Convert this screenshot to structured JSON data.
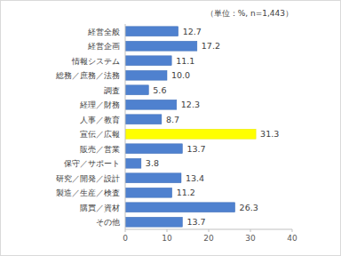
{
  "chart_data": {
    "type": "bar",
    "orientation": "horizontal",
    "annotation": "（単位：%, n=1,443）",
    "categories": [
      "経営全般",
      "経営企画",
      "情報システム",
      "総務／庶務／法務",
      "調査",
      "経理／財務",
      "人事／教育",
      "宣伝／広報",
      "販売／営業",
      "保守／サポート",
      "研究／開発／設計",
      "製造／生産／検査",
      "購買／資材",
      "その他"
    ],
    "values": [
      12.7,
      17.2,
      11.1,
      10.0,
      5.6,
      12.3,
      8.7,
      31.3,
      13.7,
      3.8,
      13.4,
      11.2,
      26.3,
      13.7
    ],
    "value_labels": [
      "12.7",
      "17.2",
      "11.1",
      "10.0",
      "5.6",
      "12.3",
      "8.7",
      "31.3",
      "13.7",
      "3.8",
      "13.4",
      "11.2",
      "26.3",
      "13.7"
    ],
    "colors": [
      "#4f81cf",
      "#4f81cf",
      "#4f81cf",
      "#4f81cf",
      "#4f81cf",
      "#4f81cf",
      "#4f81cf",
      "#ffff00",
      "#4f81cf",
      "#4f81cf",
      "#4f81cf",
      "#4f81cf",
      "#4f81cf",
      "#4f81cf"
    ],
    "xlim": [
      0,
      40
    ],
    "xticks": [
      0,
      10,
      20,
      30,
      40
    ],
    "grid": false,
    "data_labels": true
  }
}
